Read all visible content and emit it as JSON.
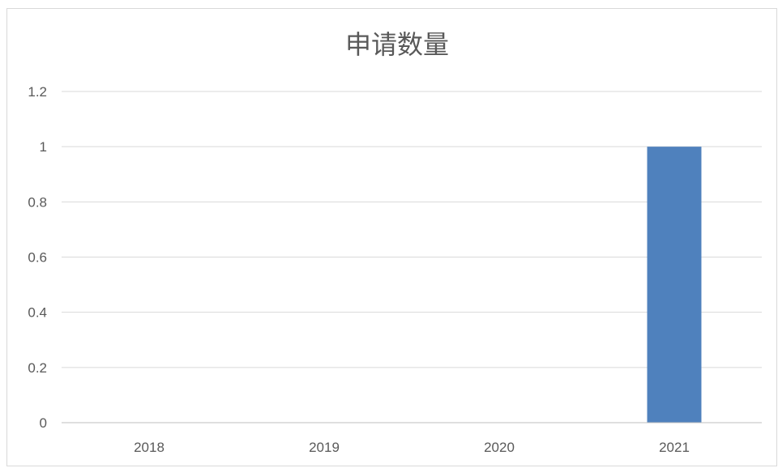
{
  "chart_data": {
    "type": "bar",
    "title": "申请数量",
    "categories": [
      "2018",
      "2019",
      "2020",
      "2021"
    ],
    "series": [
      {
        "values": [
          0,
          0,
          0,
          1
        ]
      }
    ],
    "yticks": [
      "0",
      "0.2",
      "0.4",
      "0.6",
      "0.8",
      "1",
      "1.2"
    ],
    "ylim": [
      0,
      1.2
    ],
    "grid": true,
    "legend": "none",
    "bar_color": "#4f81bd"
  }
}
